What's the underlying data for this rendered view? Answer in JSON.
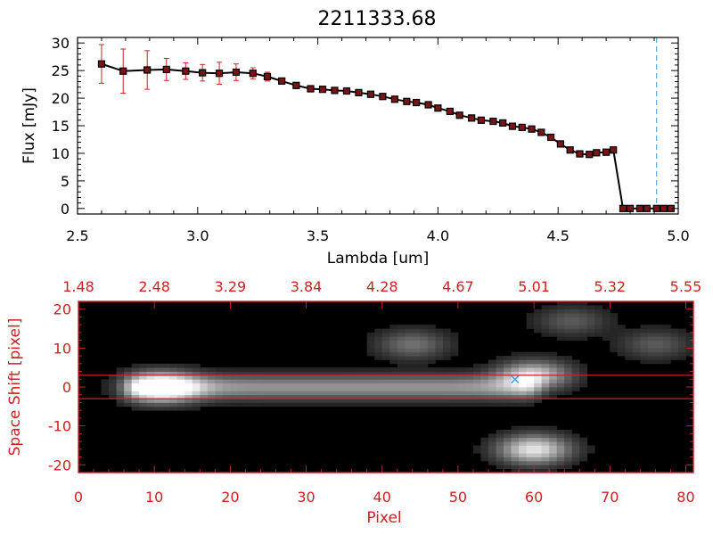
{
  "chart_data": [
    {
      "type": "line",
      "title": "2211333.68",
      "xlabel": "Lambda [um]",
      "ylabel": "Flux [mJy]",
      "xlim": [
        2.5,
        5.0
      ],
      "ylim": [
        -1,
        31
      ],
      "xticks": [
        2.5,
        3.0,
        3.5,
        4.0,
        4.5,
        5.0
      ],
      "xtick_labels": [
        "2.5",
        "3.0",
        "3.5",
        "4.0",
        "4.5",
        "5.0"
      ],
      "yticks": [
        0,
        5,
        10,
        15,
        20,
        25,
        30
      ],
      "ytick_labels": [
        "0",
        "5",
        "10",
        "15",
        "20",
        "25",
        "30"
      ],
      "reference_line_x": 4.91,
      "series": [
        {
          "name": "flux",
          "x": [
            2.6,
            2.69,
            2.79,
            2.87,
            2.95,
            3.02,
            3.09,
            3.16,
            3.23,
            3.29,
            3.35,
            3.41,
            3.47,
            3.52,
            3.57,
            3.62,
            3.67,
            3.72,
            3.77,
            3.82,
            3.87,
            3.91,
            3.96,
            4.0,
            4.05,
            4.09,
            4.14,
            4.18,
            4.23,
            4.27,
            4.31,
            4.35,
            4.39,
            4.43,
            4.47,
            4.51,
            4.55,
            4.59,
            4.63,
            4.66,
            4.7,
            4.73,
            4.77,
            4.8,
            4.84,
            4.87,
            4.91,
            4.94,
            4.97
          ],
          "y": [
            26.2,
            24.9,
            25.1,
            25.2,
            24.9,
            24.6,
            24.5,
            24.7,
            24.5,
            23.9,
            23.1,
            22.3,
            21.7,
            21.6,
            21.4,
            21.3,
            21.0,
            20.7,
            20.3,
            19.8,
            19.4,
            19.2,
            18.8,
            18.2,
            17.6,
            16.9,
            16.4,
            16.0,
            15.8,
            15.5,
            14.9,
            14.7,
            14.4,
            13.8,
            12.9,
            11.7,
            10.6,
            9.9,
            9.8,
            10.1,
            10.2,
            10.6,
            0.0,
            0.0,
            0.0,
            0.0,
            0.0,
            0.0,
            0.0
          ],
          "yerr": [
            3.5,
            4.0,
            3.5,
            2.0,
            1.5,
            1.5,
            2.0,
            1.5,
            1.0,
            0.8,
            0.5,
            0.4,
            0.3,
            0.3,
            0.3,
            0.3,
            0.3,
            0.3,
            0.3,
            0.3,
            0.3,
            0.3,
            0.3,
            0.3,
            0.3,
            0.3,
            0.3,
            0.3,
            0.3,
            0.3,
            0.3,
            0.3,
            0.3,
            0.3,
            0.3,
            0.3,
            0.4,
            0.4,
            0.4,
            0.4,
            0.4,
            0.4,
            0.0,
            0.0,
            0.0,
            0.0,
            0.0,
            0.0,
            0.0
          ]
        }
      ]
    },
    {
      "type": "heatmap",
      "xlabel": "Pixel",
      "ylabel": "Space Shift [pixel]",
      "xlim": [
        0,
        81
      ],
      "ylim": [
        -22,
        22
      ],
      "xticks": [
        0,
        10,
        20,
        30,
        40,
        50,
        60,
        70,
        80
      ],
      "xtick_labels": [
        "0",
        "10",
        "20",
        "30",
        "40",
        "50",
        "60",
        "70",
        "80"
      ],
      "yticks": [
        -20,
        -10,
        0,
        10,
        20
      ],
      "ytick_labels": [
        "-20",
        "-10",
        "0",
        "10",
        "20"
      ],
      "top_axis_labels": [
        "1.48",
        "2.48",
        "3.29",
        "3.84",
        "4.28",
        "4.67",
        "5.01",
        "5.32",
        "5.55"
      ],
      "extraction_window": [
        -3,
        3
      ],
      "marker": {
        "x": 57.5,
        "y": 2.2,
        "label": "×"
      },
      "features": [
        {
          "name": "trace",
          "x_from": 5,
          "x_to": 62,
          "y": 0,
          "intensity": 0.55
        },
        {
          "name": "blob",
          "x": 11,
          "y": 0,
          "intensity": 1.0
        },
        {
          "name": "blob",
          "x": 60,
          "y": 3,
          "intensity": 0.8
        },
        {
          "name": "blob",
          "x": 60,
          "y": -16,
          "intensity": 0.9
        },
        {
          "name": "blob",
          "x": 44,
          "y": 11,
          "intensity": 0.4
        },
        {
          "name": "blob",
          "x": 65,
          "y": 17,
          "intensity": 0.3
        },
        {
          "name": "blob",
          "x": 76,
          "y": 11,
          "intensity": 0.3
        }
      ]
    }
  ],
  "colors": {
    "axis": "#000000",
    "axis_bottom_panel": "#cc2222",
    "line": "#000000",
    "marker_fill": "#7a1515",
    "errorbar": "#cc2222",
    "reference_line": "#3399dd",
    "marker_cross": "#3399dd"
  }
}
